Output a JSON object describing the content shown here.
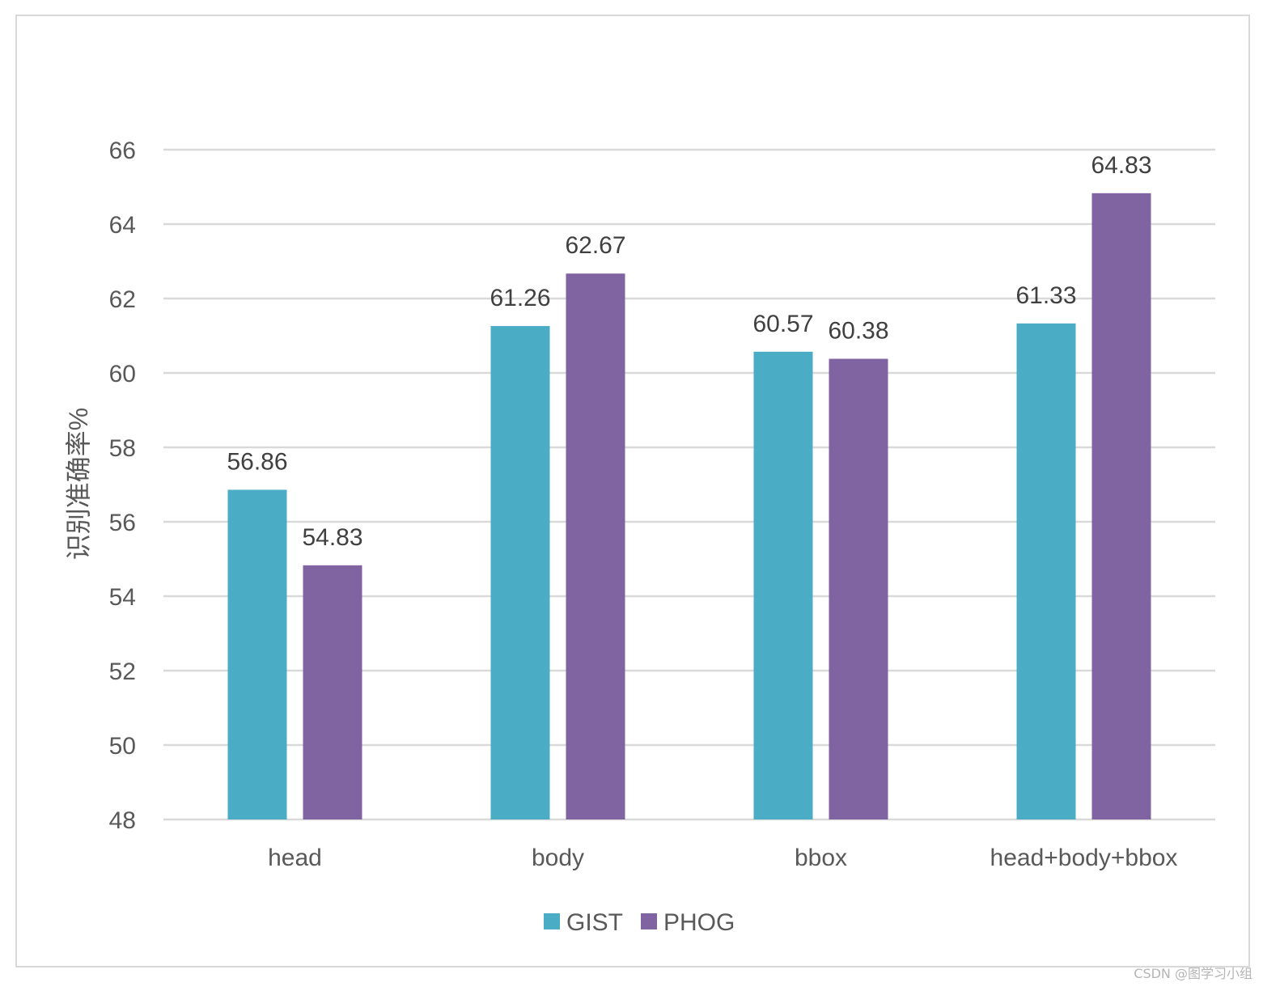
{
  "chart_data": {
    "type": "bar",
    "title": "",
    "xlabel": "",
    "ylabel": "识别准确率%",
    "categories": [
      "head",
      "body",
      "bbox",
      "head+body+bbox"
    ],
    "series": [
      {
        "name": "GIST",
        "values": [
          56.86,
          61.26,
          60.57,
          61.33
        ]
      },
      {
        "name": "PHOG",
        "values": [
          54.83,
          62.67,
          60.38,
          64.83
        ]
      }
    ],
    "ylim": [
      48,
      66
    ],
    "yticks": [
      48,
      50,
      52,
      54,
      56,
      58,
      60,
      62,
      64,
      66
    ],
    "grid": true,
    "legend": "bottom-center",
    "data_labels": true,
    "colors": {
      "GIST": "#4bacc6",
      "PHOG": "#8064a2",
      "grid": "#d9d9d9",
      "frame": "#d9d9d9"
    }
  },
  "watermark": "CSDN @图学习小组"
}
